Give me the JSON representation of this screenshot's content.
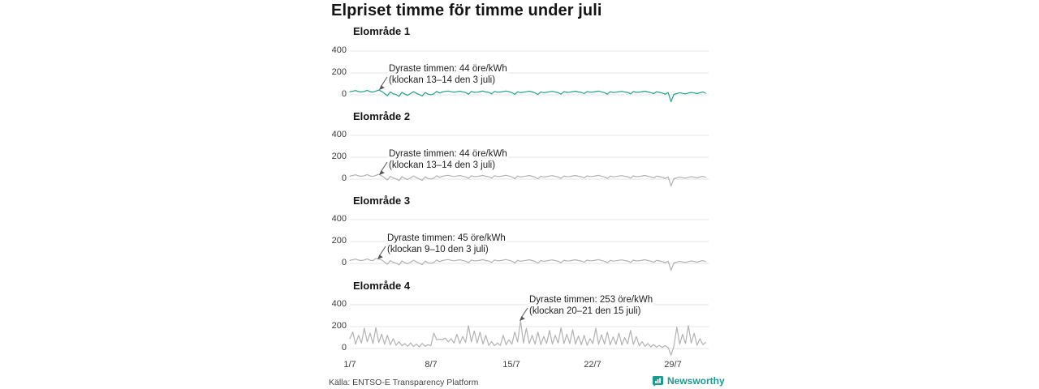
{
  "title": "Elpriset timme för timme under juli",
  "footer": {
    "source": "Källa: ENTSO-E Transparency Platform",
    "brand": "Newsworthy"
  },
  "colors": {
    "accent_teal": "#21a190",
    "line_gray": "#b2b2b2",
    "grid_gray": "#e4e4e4",
    "brand_teal": "#1b9a90"
  },
  "x_axis": {
    "tick_labels": [
      "1/7",
      "8/7",
      "15/7",
      "22/7",
      "29/7"
    ],
    "tick_days": [
      1,
      8,
      15,
      22,
      29
    ],
    "total_days": 31
  },
  "y_axis": {
    "labels": [
      "400",
      "200",
      "0"
    ],
    "ticks": [
      400,
      200,
      0
    ],
    "ylim": [
      -100,
      450
    ]
  },
  "chart_data": [
    {
      "type": "line",
      "title": "Elområde 1",
      "line_color": "#21a190",
      "annotation": {
        "line1": "Dyraste timmen: 44 öre/kWh",
        "line2": "(klockan 13–14 den 3 juli)",
        "peak_value_ore_per_kwh": 44
      },
      "samples_per_day": 4,
      "values": [
        28,
        33,
        39,
        30,
        26,
        31,
        41,
        29,
        25,
        34,
        44,
        31,
        12,
        -8,
        26,
        9,
        3,
        -14,
        23,
        6,
        -4,
        12,
        29,
        13,
        3,
        -11,
        21,
        7,
        1,
        9,
        31,
        16,
        26,
        31,
        35,
        28,
        24,
        28,
        33,
        27,
        21,
        6,
        31,
        23,
        24,
        29,
        34,
        26,
        22,
        9,
        31,
        24,
        25,
        30,
        35,
        28,
        20,
        4,
        28,
        19,
        24,
        28,
        33,
        26,
        18,
        3,
        27,
        20,
        23,
        28,
        32,
        25,
        20,
        7,
        29,
        22,
        24,
        29,
        33,
        26,
        22,
        11,
        30,
        24,
        25,
        30,
        34,
        27,
        20,
        6,
        28,
        21,
        24,
        28,
        32,
        25,
        22,
        9,
        30,
        23,
        24,
        29,
        33,
        26,
        20,
        11,
        28,
        22,
        16,
        6,
        21,
        -62,
        4,
        12,
        19,
        13,
        9,
        16,
        23,
        17,
        11,
        19,
        26,
        15
      ]
    },
    {
      "type": "line",
      "title": "Elområde 2",
      "line_color": "#b2b2b2",
      "annotation": {
        "line1": "Dyraste timmen: 44 öre/kWh",
        "line2": "(klockan 13–14 den 3 juli)",
        "peak_value_ore_per_kwh": 44
      },
      "samples_per_day": 4,
      "values": [
        28,
        33,
        39,
        30,
        26,
        31,
        41,
        29,
        25,
        34,
        44,
        31,
        12,
        -8,
        26,
        9,
        3,
        -14,
        23,
        6,
        -4,
        12,
        29,
        13,
        3,
        -11,
        21,
        7,
        1,
        9,
        31,
        16,
        26,
        31,
        35,
        28,
        24,
        28,
        33,
        27,
        21,
        6,
        31,
        23,
        24,
        29,
        34,
        26,
        22,
        9,
        31,
        24,
        25,
        30,
        35,
        28,
        20,
        4,
        28,
        19,
        24,
        28,
        33,
        26,
        18,
        3,
        27,
        20,
        23,
        28,
        32,
        25,
        20,
        7,
        29,
        22,
        24,
        29,
        33,
        26,
        22,
        11,
        30,
        24,
        25,
        30,
        34,
        27,
        20,
        6,
        28,
        21,
        24,
        28,
        32,
        25,
        22,
        9,
        30,
        23,
        24,
        29,
        33,
        26,
        20,
        11,
        28,
        22,
        16,
        6,
        21,
        -62,
        4,
        12,
        19,
        13,
        9,
        16,
        23,
        17,
        11,
        19,
        26,
        15
      ]
    },
    {
      "type": "line",
      "title": "Elområde 3",
      "line_color": "#b2b2b2",
      "annotation": {
        "line1": "Dyraste timmen: 45 öre/kWh",
        "line2": "(klockan 9–10 den 3 juli)",
        "peak_value_ore_per_kwh": 45
      },
      "samples_per_day": 4,
      "values": [
        28,
        33,
        39,
        30,
        26,
        31,
        41,
        29,
        25,
        45,
        39,
        31,
        12,
        -8,
        26,
        9,
        3,
        -14,
        23,
        6,
        -4,
        12,
        29,
        13,
        3,
        -11,
        21,
        7,
        1,
        9,
        31,
        16,
        26,
        31,
        35,
        28,
        24,
        28,
        33,
        27,
        21,
        6,
        31,
        23,
        24,
        29,
        34,
        26,
        22,
        9,
        31,
        24,
        25,
        30,
        35,
        28,
        20,
        4,
        28,
        19,
        24,
        28,
        33,
        26,
        18,
        3,
        27,
        20,
        23,
        28,
        32,
        25,
        20,
        7,
        29,
        22,
        24,
        29,
        33,
        26,
        22,
        11,
        30,
        24,
        25,
        30,
        34,
        27,
        20,
        6,
        28,
        21,
        24,
        28,
        32,
        25,
        22,
        9,
        30,
        23,
        24,
        29,
        33,
        26,
        20,
        11,
        28,
        22,
        16,
        6,
        21,
        -62,
        4,
        12,
        19,
        13,
        9,
        16,
        23,
        17,
        11,
        19,
        26,
        15
      ]
    },
    {
      "type": "line",
      "title": "Elområde 4",
      "line_color": "#b2b2b2",
      "annotation": {
        "line1": "Dyraste timmen: 253 öre/kWh",
        "line2": "(klockan 20–21 den 15 juli)",
        "peak_value_ore_per_kwh": 253
      },
      "samples_per_day": 4,
      "values": [
        90,
        150,
        40,
        120,
        50,
        185,
        60,
        140,
        45,
        190,
        55,
        130,
        40,
        120,
        35,
        90,
        30,
        62,
        25,
        45,
        20,
        52,
        18,
        40,
        15,
        46,
        20,
        35,
        25,
        142,
        80,
        85,
        80,
        95,
        60,
        90,
        50,
        130,
        45,
        110,
        55,
        208,
        60,
        160,
        50,
        150,
        40,
        120,
        30,
        62,
        25,
        50,
        28,
        120,
        35,
        80,
        40,
        150,
        60,
        253,
        50,
        185,
        45,
        120,
        40,
        150,
        35,
        110,
        45,
        165,
        40,
        120,
        50,
        190,
        45,
        130,
        45,
        170,
        40,
        115,
        35,
        120,
        30,
        90,
        45,
        185,
        40,
        125,
        40,
        150,
        35,
        105,
        38,
        140,
        32,
        100,
        42,
        165,
        38,
        110,
        25,
        62,
        20,
        45,
        15,
        36,
        12,
        28,
        10,
        26,
        8,
        -60,
        20,
        195,
        40,
        130,
        45,
        210,
        50,
        140,
        30,
        90,
        35,
        55
      ]
    }
  ]
}
